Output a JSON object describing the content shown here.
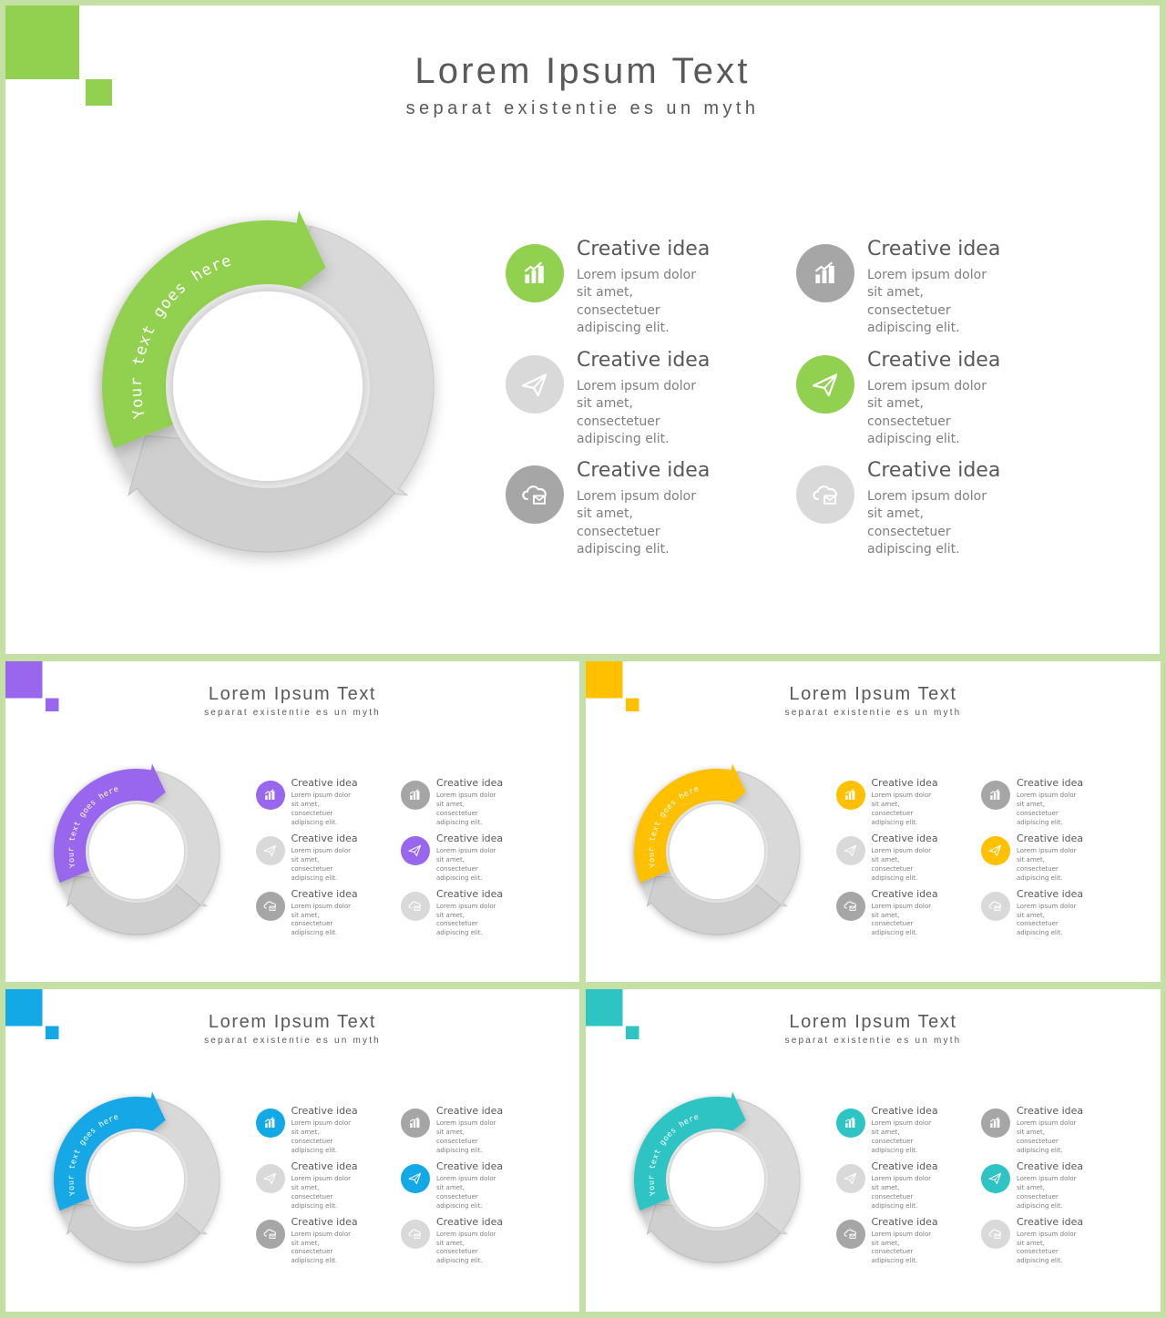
{
  "slides": [
    {
      "id": "main",
      "accent": "#92d050",
      "title": "Lorem Ipsum Text",
      "subtitle": "separat existentie es un myth",
      "arrow_text": "Your text goes here",
      "items": [
        {
          "icon": "bar-chart-icon",
          "icon_style": "accent",
          "title": "Creative idea",
          "desc": "Lorem ipsum dolor sit amet,\nconsectetuer adipiscing elit."
        },
        {
          "icon": "bar-chart-icon",
          "icon_style": "dark",
          "title": "Creative idea",
          "desc": "Lorem ipsum dolor sit amet,\nconsectetuer adipiscing elit."
        },
        {
          "icon": "paper-plane-icon",
          "icon_style": "light",
          "title": "Creative idea",
          "desc": "Lorem ipsum dolor sit amet,\nconsectetuer adipiscing elit."
        },
        {
          "icon": "paper-plane-icon",
          "icon_style": "accent",
          "title": "Creative idea",
          "desc": "Lorem ipsum dolor sit amet,\nconsectetuer adipiscing elit."
        },
        {
          "icon": "cloud-mail-icon",
          "icon_style": "dark",
          "title": "Creative idea",
          "desc": "Lorem ipsum dolor sit amet,\nconsectetuer adipiscing elit."
        },
        {
          "icon": "cloud-mail-icon",
          "icon_style": "light",
          "title": "Creative idea",
          "desc": "Lorem ipsum dolor sit amet,\nconsectetuer adipiscing elit."
        }
      ]
    },
    {
      "id": "purple",
      "accent": "#9966ee",
      "title": "Lorem Ipsum Text",
      "subtitle": "separat existentie es un myth",
      "arrow_text": "Your text goes here",
      "items": [
        {
          "icon": "bar-chart-icon",
          "icon_style": "accent",
          "title": "Creative idea",
          "desc": "Lorem ipsum dolor sit amet,\nconsectetuer adipiscing elit."
        },
        {
          "icon": "bar-chart-icon",
          "icon_style": "dark",
          "title": "Creative idea",
          "desc": "Lorem ipsum dolor sit amet,\nconsectetuer adipiscing elit."
        },
        {
          "icon": "paper-plane-icon",
          "icon_style": "light",
          "title": "Creative idea",
          "desc": "Lorem ipsum dolor sit amet,\nconsectetuer adipiscing elit."
        },
        {
          "icon": "paper-plane-icon",
          "icon_style": "accent",
          "title": "Creative idea",
          "desc": "Lorem ipsum dolor sit amet,\nconsectetuer adipiscing elit."
        },
        {
          "icon": "cloud-mail-icon",
          "icon_style": "dark",
          "title": "Creative idea",
          "desc": "Lorem ipsum dolor sit amet,\nconsectetuer adipiscing elit."
        },
        {
          "icon": "cloud-mail-icon",
          "icon_style": "light",
          "title": "Creative idea",
          "desc": "Lorem ipsum dolor sit amet,\nconsectetuer adipiscing elit."
        }
      ]
    },
    {
      "id": "orange",
      "accent": "#ffc000",
      "title": "Lorem Ipsum Text",
      "subtitle": "separat existentie es un myth",
      "arrow_text": "Your text goes here",
      "items": [
        {
          "icon": "bar-chart-icon",
          "icon_style": "accent",
          "title": "Creative idea",
          "desc": "Lorem ipsum dolor sit amet,\nconsectetuer adipiscing elit."
        },
        {
          "icon": "bar-chart-icon",
          "icon_style": "dark",
          "title": "Creative idea",
          "desc": "Lorem ipsum dolor sit amet,\nconsectetuer adipiscing elit."
        },
        {
          "icon": "paper-plane-icon",
          "icon_style": "light",
          "title": "Creative idea",
          "desc": "Lorem ipsum dolor sit amet,\nconsectetuer adipiscing elit."
        },
        {
          "icon": "paper-plane-icon",
          "icon_style": "accent",
          "title": "Creative idea",
          "desc": "Lorem ipsum dolor sit amet,\nconsectetuer adipiscing elit."
        },
        {
          "icon": "cloud-mail-icon",
          "icon_style": "dark",
          "title": "Creative idea",
          "desc": "Lorem ipsum dolor sit amet,\nconsectetuer adipiscing elit."
        },
        {
          "icon": "cloud-mail-icon",
          "icon_style": "light",
          "title": "Creative idea",
          "desc": "Lorem ipsum dolor sit amet,\nconsectetuer adipiscing elit."
        }
      ]
    },
    {
      "id": "blue",
      "accent": "#13a8e6",
      "title": "Lorem Ipsum Text",
      "subtitle": "separat existentie es un myth",
      "arrow_text": "Your text goes here",
      "items": [
        {
          "icon": "bar-chart-icon",
          "icon_style": "accent",
          "title": "Creative idea",
          "desc": "Lorem ipsum dolor sit amet,\nconsectetuer adipiscing elit."
        },
        {
          "icon": "bar-chart-icon",
          "icon_style": "dark",
          "title": "Creative idea",
          "desc": "Lorem ipsum dolor sit amet,\nconsectetuer adipiscing elit."
        },
        {
          "icon": "paper-plane-icon",
          "icon_style": "light",
          "title": "Creative idea",
          "desc": "Lorem ipsum dolor sit amet,\nconsectetuer adipiscing elit."
        },
        {
          "icon": "paper-plane-icon",
          "icon_style": "accent",
          "title": "Creative idea",
          "desc": "Lorem ipsum dolor sit amet,\nconsectetuer adipiscing elit."
        },
        {
          "icon": "cloud-mail-icon",
          "icon_style": "dark",
          "title": "Creative idea",
          "desc": "Lorem ipsum dolor sit amet,\nconsectetuer adipiscing elit."
        },
        {
          "icon": "cloud-mail-icon",
          "icon_style": "light",
          "title": "Creative idea",
          "desc": "Lorem ipsum dolor sit amet,\nconsectetuer adipiscing elit."
        }
      ]
    },
    {
      "id": "teal",
      "accent": "#2ec4c4",
      "title": "Lorem Ipsum Text",
      "subtitle": "separat existentie es un myth",
      "arrow_text": "Your text goes here",
      "items": [
        {
          "icon": "bar-chart-icon",
          "icon_style": "accent",
          "title": "Creative idea",
          "desc": "Lorem ipsum dolor sit amet,\nconsectetuer adipiscing elit."
        },
        {
          "icon": "bar-chart-icon",
          "icon_style": "dark",
          "title": "Creative idea",
          "desc": "Lorem ipsum dolor sit amet,\nconsectetuer adipiscing elit."
        },
        {
          "icon": "paper-plane-icon",
          "icon_style": "light",
          "title": "Creative idea",
          "desc": "Lorem ipsum dolor sit amet,\nconsectetuer adipiscing elit."
        },
        {
          "icon": "paper-plane-icon",
          "icon_style": "accent",
          "title": "Creative idea",
          "desc": "Lorem ipsum dolor sit amet,\nconsectetuer adipiscing elit."
        },
        {
          "icon": "cloud-mail-icon",
          "icon_style": "dark",
          "title": "Creative idea",
          "desc": "Lorem ipsum dolor sit amet,\nconsectetuer adipiscing elit."
        },
        {
          "icon": "cloud-mail-icon",
          "icon_style": "light",
          "title": "Creative idea",
          "desc": "Lorem ipsum dolor sit amet,\nconsectetuer adipiscing elit."
        }
      ]
    }
  ]
}
